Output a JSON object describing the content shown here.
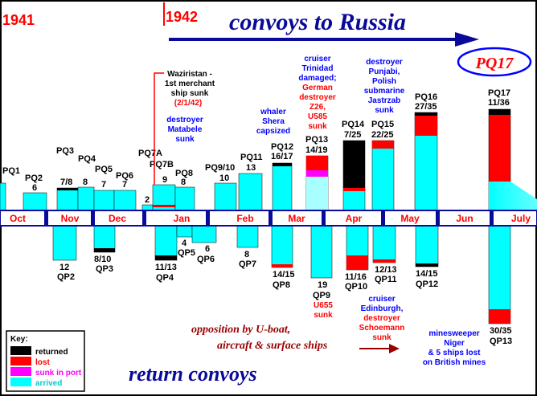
{
  "header": {
    "year_1941": "1941",
    "year_1942": "1942",
    "title": "convoys to Russia",
    "badge": "PQ17"
  },
  "months": [
    "Oct",
    "Nov",
    "Dec",
    "Jan",
    "Feb",
    "Mar",
    "Apr",
    "May",
    "Jun",
    "July"
  ],
  "outbound": [
    {
      "id": "PQ1",
      "label": "PQ1",
      "value": ""
    },
    {
      "id": "PQ2",
      "label": "PQ2",
      "value": "6"
    },
    {
      "id": "PQ3",
      "label": "PQ3",
      "value": "7/8"
    },
    {
      "id": "PQ4",
      "label": "PQ4",
      "value": "8"
    },
    {
      "id": "PQ5",
      "label": "PQ5",
      "value": "7"
    },
    {
      "id": "PQ6",
      "label": "PQ6",
      "value": "7"
    },
    {
      "id": "PQ7A",
      "label": "PQ7A",
      "value": "2"
    },
    {
      "id": "PQ7B",
      "label": "PQ7B",
      "value": "9"
    },
    {
      "id": "PQ8",
      "label": "PQ8",
      "value": "8"
    },
    {
      "id": "PQ9_10",
      "label": "PQ9/10",
      "value": "10"
    },
    {
      "id": "PQ11",
      "label": "PQ11",
      "value": "13"
    },
    {
      "id": "PQ12",
      "label": "PQ12",
      "value": "16/17"
    },
    {
      "id": "PQ13",
      "label": "PQ13",
      "value": "14/19"
    },
    {
      "id": "PQ14",
      "label": "PQ14",
      "value": "7/25"
    },
    {
      "id": "PQ15",
      "label": "PQ15",
      "value": "22/25"
    },
    {
      "id": "PQ16",
      "label": "PQ16",
      "value": "27/35"
    },
    {
      "id": "PQ17",
      "label": "PQ17",
      "value": "11/36"
    }
  ],
  "returns": [
    {
      "id": "QP2",
      "label": "QP2",
      "value": "12"
    },
    {
      "id": "QP3",
      "label": "QP3",
      "value": "8/10"
    },
    {
      "id": "QP4",
      "label": "QP4",
      "value": "11/13"
    },
    {
      "id": "QP5",
      "label": "QP5",
      "value": "4"
    },
    {
      "id": "QP6",
      "label": "QP6",
      "value": "6"
    },
    {
      "id": "QP7",
      "label": "QP7",
      "value": "8"
    },
    {
      "id": "QP8",
      "label": "QP8",
      "value": "14/15"
    },
    {
      "id": "QP9",
      "label": "QP9",
      "value": "19"
    },
    {
      "id": "QP10",
      "label": "QP10",
      "value": "11/16"
    },
    {
      "id": "QP11",
      "label": "QP11",
      "value": "12/13"
    },
    {
      "id": "QP12",
      "label": "QP12",
      "value": "14/15"
    },
    {
      "id": "QP13",
      "label": "QP13",
      "value": "30/35"
    }
  ],
  "annotations": {
    "waziristan": [
      "Waziristan -",
      "1st merchant",
      "ship sunk"
    ],
    "waziristan_date": "(2/1/42)",
    "matabele": [
      "destroyer",
      "Matabele",
      "sunk"
    ],
    "shera": [
      "whaler",
      "Shera",
      "capsized"
    ],
    "trinidad_blue": [
      "cruiser",
      "Trinidad",
      "damaged;"
    ],
    "trinidad_red": [
      "German",
      "destroyer",
      "Z26,",
      "U585",
      "sunk"
    ],
    "punjabi": [
      "destroyer",
      "Punjabi,",
      "Polish",
      "submarine",
      "Jastrzab",
      "sunk"
    ],
    "u655": [
      "U655",
      "sunk"
    ],
    "edinburgh_blue": [
      "cruiser",
      "Edinburgh,"
    ],
    "edinburgh_red": [
      "destroyer",
      "Schoemann",
      "sunk"
    ],
    "niger": [
      "minesweeper",
      "Niger",
      "& 5 ships lost",
      "on British mines"
    ],
    "opposition": [
      "opposition by U-boat,",
      "aircraft & surface ships"
    ],
    "return_title": "return convoys"
  },
  "key": {
    "title": "Key:",
    "items": [
      {
        "label": "returned",
        "color": "#000000",
        "text_color": "#000000"
      },
      {
        "label": "lost",
        "color": "#ff0000",
        "text_color": "#ff0000"
      },
      {
        "label": "sunk in port",
        "color": "#ff00ff",
        "text_color": "#ff00ff"
      },
      {
        "label": "arrived",
        "color": "#00ffff",
        "text_color": "#00cccc"
      }
    ]
  },
  "colors": {
    "returned": "#000000",
    "lost": "#ff0000",
    "sunk_in_port": "#ff00ff",
    "arrived": "#00ffff",
    "navy": "#0a0a9a",
    "blue_text": "#0000ff",
    "red_text": "#ff0000",
    "maroon": "#990000"
  }
}
